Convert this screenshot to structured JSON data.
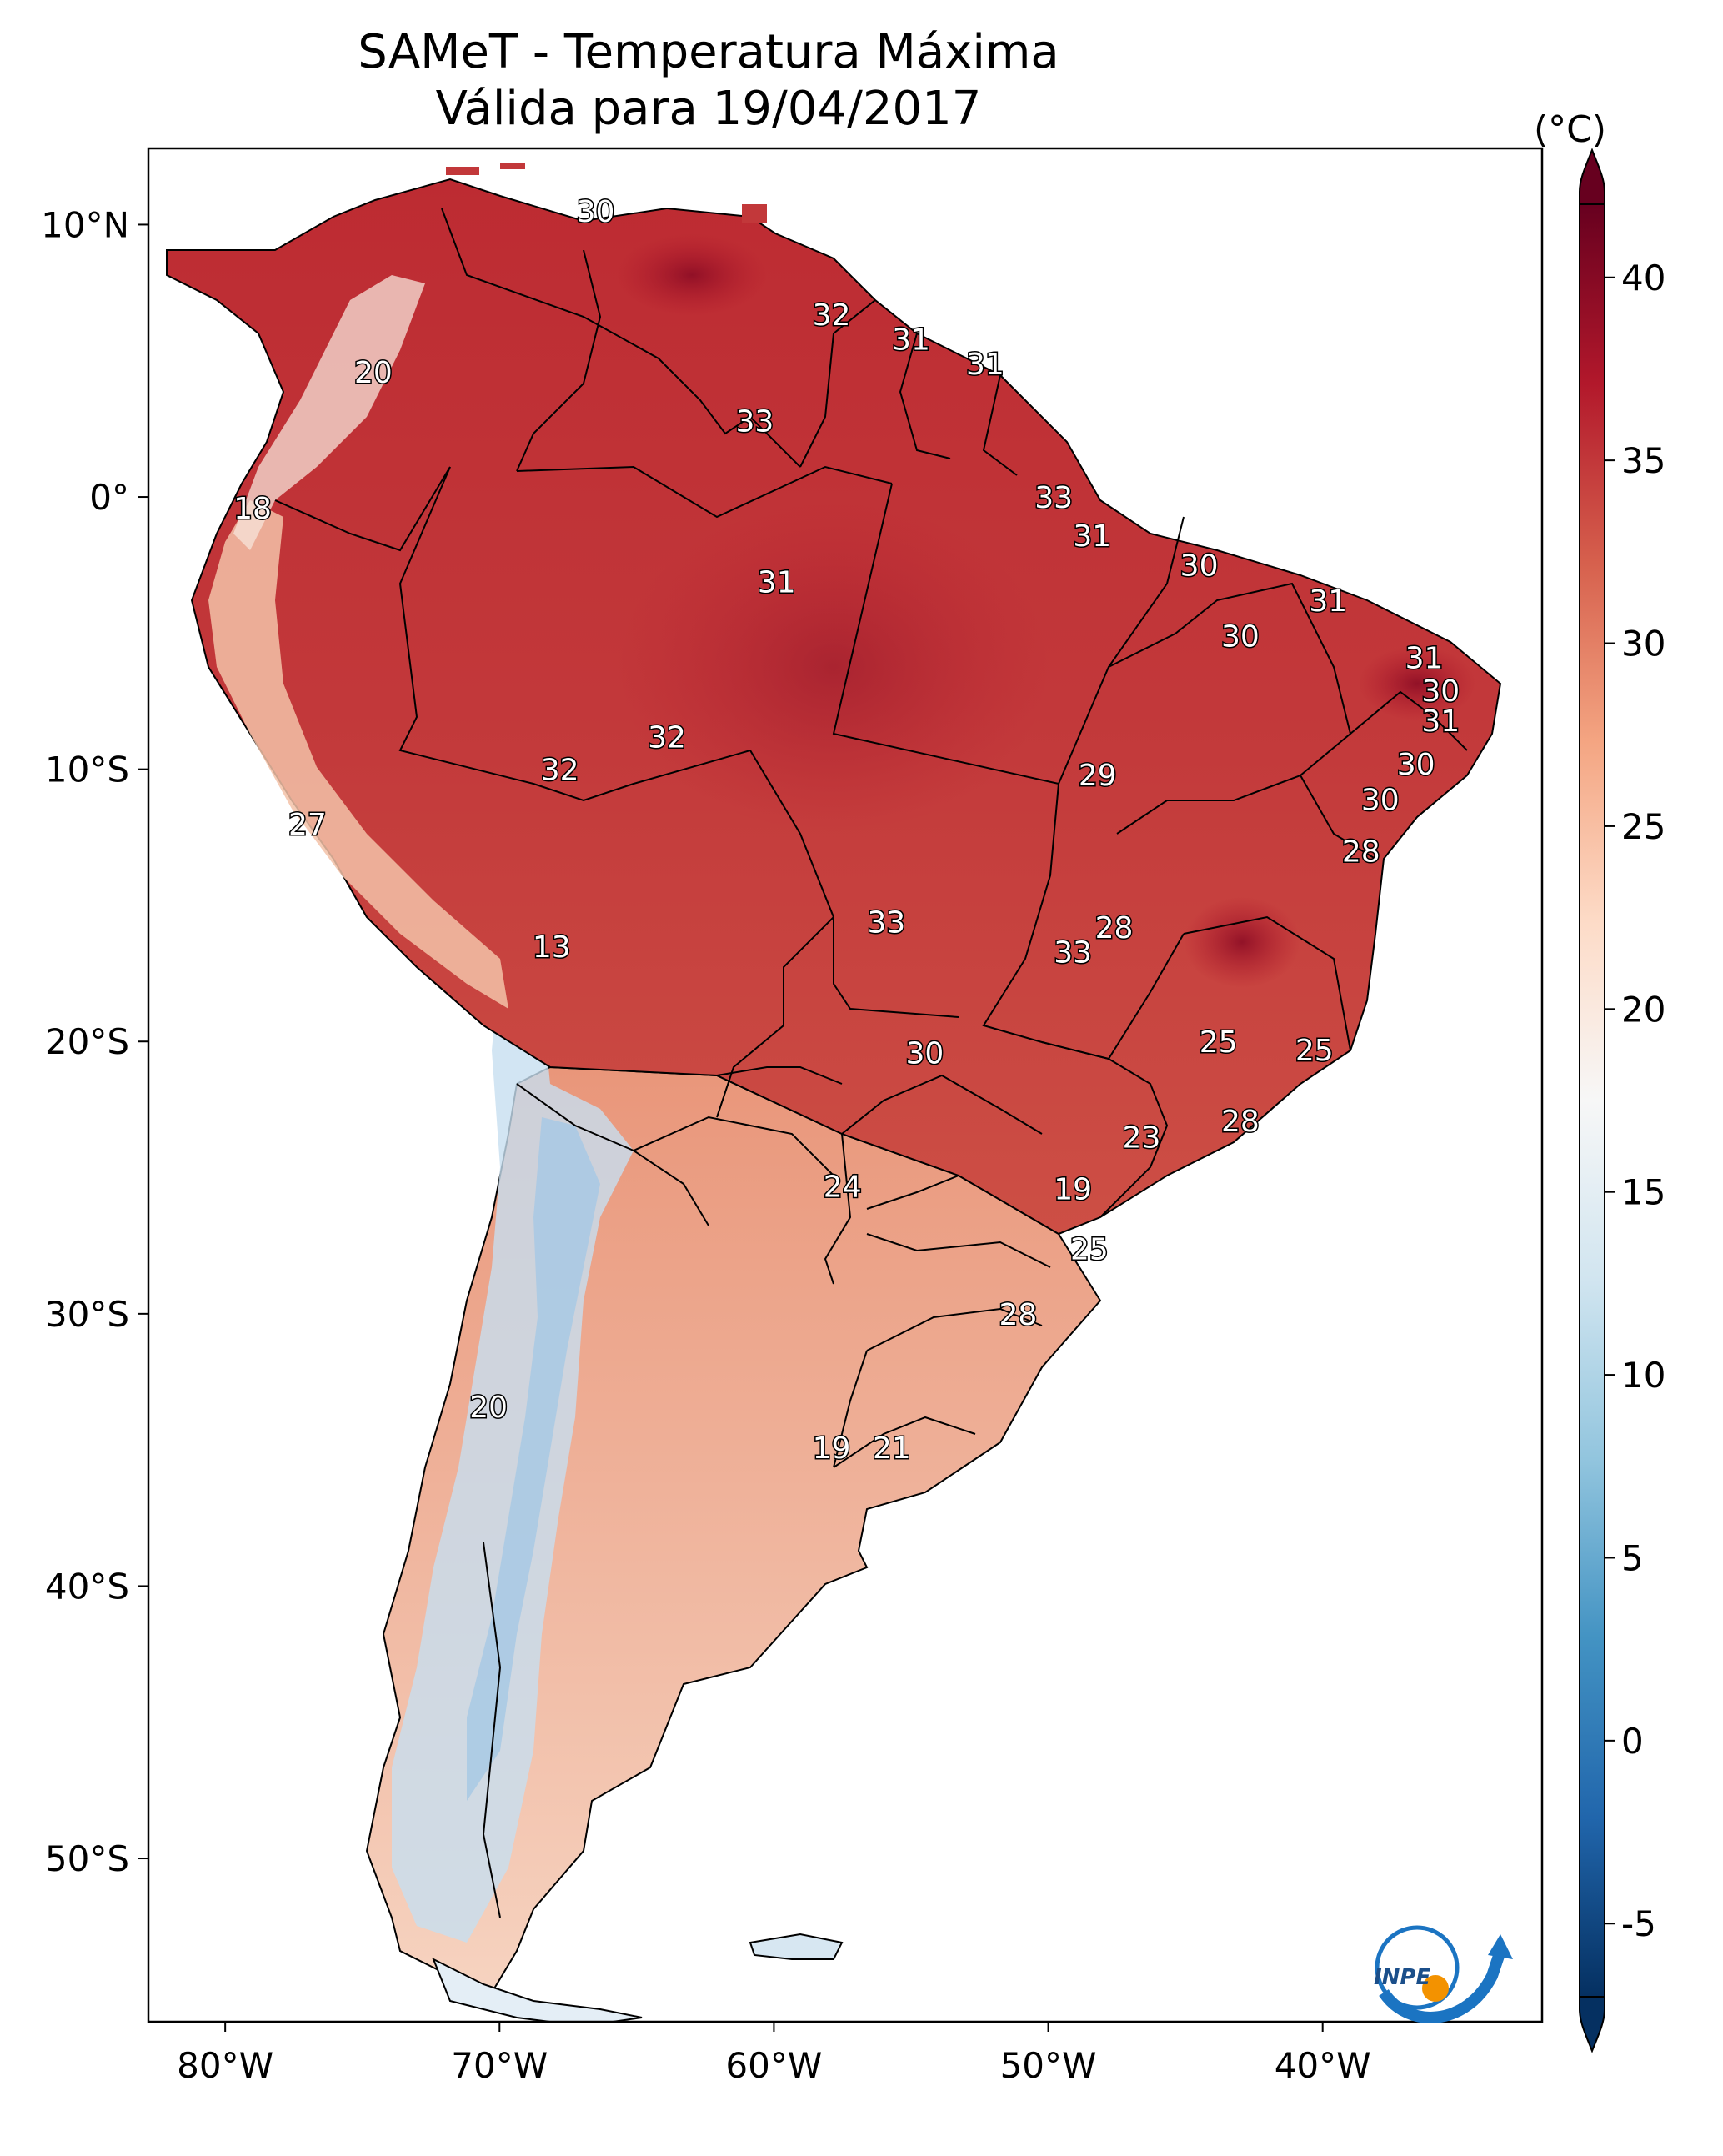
{
  "title": "SAMeT - Temperatura Máxima",
  "subtitle": "Válida para 19/04/2017",
  "units_label": "(°C)",
  "colorbar": {
    "ticks": [
      "-5",
      "0",
      "5",
      "10",
      "15",
      "20",
      "25",
      "30",
      "35",
      "40"
    ],
    "min": -7,
    "max": 42,
    "colors": [
      "#053061",
      "#2166ac",
      "#4393c3",
      "#92c5de",
      "#d1e5f0",
      "#f7f7f7",
      "#fddbc7",
      "#f4a582",
      "#d6604d",
      "#b2182b",
      "#67001f"
    ]
  },
  "axes": {
    "lat_labels": [
      "10°N",
      "0°",
      "10°S",
      "20°S",
      "30°S",
      "40°S",
      "50°S"
    ],
    "lon_labels": [
      "80°W",
      "70°W",
      "60°W",
      "50°W",
      "40°W"
    ]
  },
  "logo_text": "INPE",
  "stations": [
    {
      "v": "30",
      "lon": -66.5,
      "lat": 10.5
    },
    {
      "v": "32",
      "lon": -57.9,
      "lat": 6.7
    },
    {
      "v": "31",
      "lon": -55.0,
      "lat": 5.8
    },
    {
      "v": "31",
      "lon": -52.3,
      "lat": 4.9
    },
    {
      "v": "20",
      "lon": -74.6,
      "lat": 4.6
    },
    {
      "v": "33",
      "lon": -60.7,
      "lat": 2.8
    },
    {
      "v": "33",
      "lon": -49.8,
      "lat": 0.0
    },
    {
      "v": "18",
      "lon": -79.0,
      "lat": -0.4
    },
    {
      "v": "31",
      "lon": -48.4,
      "lat": -1.4
    },
    {
      "v": "30",
      "lon": -44.5,
      "lat": -2.5
    },
    {
      "v": "31",
      "lon": -59.9,
      "lat": -3.1
    },
    {
      "v": "31",
      "lon": -39.8,
      "lat": -3.8
    },
    {
      "v": "30",
      "lon": -43.0,
      "lat": -5.1
    },
    {
      "v": "31",
      "lon": -36.3,
      "lat": -5.9
    },
    {
      "v": "30",
      "lon": -35.7,
      "lat": -7.1
    },
    {
      "v": "31",
      "lon": -35.7,
      "lat": -8.2
    },
    {
      "v": "32",
      "lon": -63.9,
      "lat": -8.8
    },
    {
      "v": "30",
      "lon": -36.6,
      "lat": -9.8
    },
    {
      "v": "32",
      "lon": -67.8,
      "lat": -10.0
    },
    {
      "v": "29",
      "lon": -48.2,
      "lat": -10.2
    },
    {
      "v": "30",
      "lon": -37.9,
      "lat": -11.1
    },
    {
      "v": "27",
      "lon": -77.0,
      "lat": -12.0
    },
    {
      "v": "28",
      "lon": -38.6,
      "lat": -13.0
    },
    {
      "v": "33",
      "lon": -55.9,
      "lat": -15.6
    },
    {
      "v": "28",
      "lon": -47.6,
      "lat": -15.8
    },
    {
      "v": "33",
      "lon": -49.1,
      "lat": -16.7
    },
    {
      "v": "13",
      "lon": -68.1,
      "lat": -16.5
    },
    {
      "v": "25",
      "lon": -43.8,
      "lat": -20.0
    },
    {
      "v": "25",
      "lon": -40.3,
      "lat": -20.3
    },
    {
      "v": "30",
      "lon": -54.5,
      "lat": -20.4
    },
    {
      "v": "28",
      "lon": -43.0,
      "lat": -22.9
    },
    {
      "v": "23",
      "lon": -46.6,
      "lat": -23.5
    },
    {
      "v": "24",
      "lon": -57.5,
      "lat": -25.3
    },
    {
      "v": "19",
      "lon": -49.1,
      "lat": -25.4
    },
    {
      "v": "25",
      "lon": -48.5,
      "lat": -27.6
    },
    {
      "v": "28",
      "lon": -51.1,
      "lat": -30.0
    },
    {
      "v": "20",
      "lon": -70.4,
      "lat": -33.4
    },
    {
      "v": "19",
      "lon": -57.9,
      "lat": -34.9
    },
    {
      "v": "21",
      "lon": -55.7,
      "lat": -34.9
    }
  ]
}
